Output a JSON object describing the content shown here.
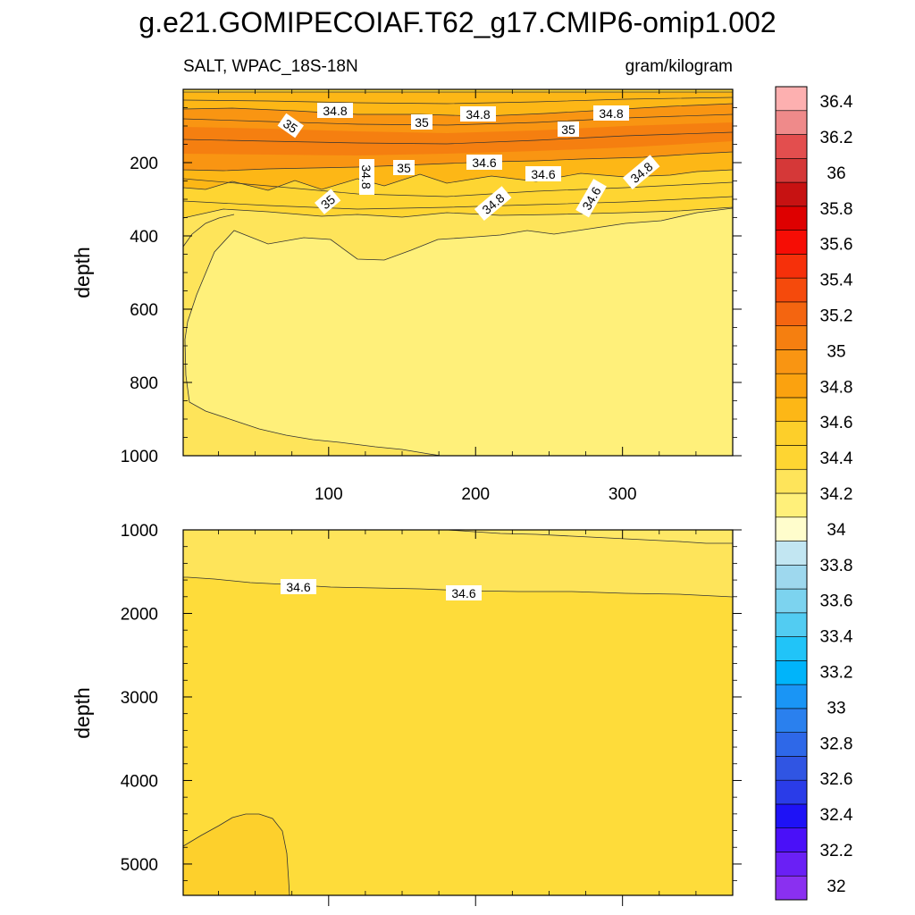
{
  "title": "g.e21.GOMIPECOIAF.T62_g17.CMIP6-omip1.002",
  "variable_label": "SALT, WPAC_18S-18N",
  "units": "gram/kilogram",
  "colors": {
    "c344": "#fff07a",
    "c346": "#fee45a",
    "c348": "#fed532",
    "c350": "#fdb716",
    "c352": "#f99512",
    "c354": "#f57f10",
    "edge": "#ec9b1c"
  },
  "chart_data": [
    {
      "type": "contour",
      "panel": "upper",
      "xlim": [
        1,
        375
      ],
      "ylim": [
        0,
        1000
      ],
      "y_inverted": true,
      "xticks": [
        "100",
        "200",
        "300"
      ],
      "yticks": [
        "200",
        "400",
        "600",
        "800",
        "1000"
      ],
      "ylabel": "depth",
      "contour_labels": [
        "34.8",
        "35",
        "35",
        "34.8",
        "35",
        "34.8",
        "34.8",
        "35",
        "34.6",
        "35",
        "34.6",
        "34.8",
        "34.6",
        "34.8"
      ]
    },
    {
      "type": "contour",
      "panel": "lower",
      "xlim": [
        1,
        375
      ],
      "ylim": [
        1000,
        5375
      ],
      "y_inverted": true,
      "yticks": [
        "1000",
        "2000",
        "3000",
        "4000",
        "5000"
      ],
      "ylabel": "depth",
      "contour_labels": [
        "34.6",
        "34.6"
      ]
    },
    {
      "type": "colorbar",
      "levels": [
        "32",
        "32.2",
        "32.4",
        "32.6",
        "32.8",
        "33",
        "33.2",
        "33.4",
        "33.6",
        "33.8",
        "34",
        "34.2",
        "34.4",
        "34.6",
        "34.8",
        "35",
        "35.2",
        "35.4",
        "35.6",
        "35.8",
        "36",
        "36.2",
        "36.4"
      ],
      "colors": [
        "#8a30f0",
        "#6a20f5",
        "#4a10f8",
        "#1e12f6",
        "#2a3ce8",
        "#3055e3",
        "#2e68e8",
        "#2a80ee",
        "#1a95f5",
        "#00b4fa",
        "#21c4f8",
        "#52ccf2",
        "#7cd3ef",
        "#9ed8ee",
        "#c2e6f2",
        "#fffdcc",
        "#fff07a",
        "#fee45a",
        "#fed532",
        "#fdcf2a",
        "#fdb716",
        "#fba20f",
        "#f99512",
        "#f57f10",
        "#f46510",
        "#f54a0c",
        "#f6300a",
        "#f60d05",
        "#de0000",
        "#c71212",
        "#d53838",
        "#e34e4e",
        "#ef8a8a",
        "#fdb0b0"
      ]
    }
  ]
}
